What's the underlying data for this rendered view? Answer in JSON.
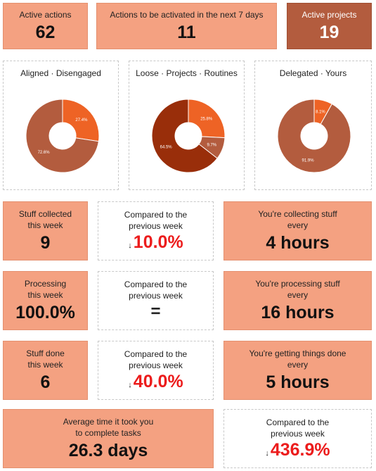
{
  "top": {
    "active_actions": {
      "label": "Active actions",
      "value": "62"
    },
    "next7": {
      "label": "Actions to be activated in the next 7 days",
      "value": "11"
    },
    "active_projects": {
      "label": "Active projects",
      "value": "19"
    }
  },
  "charts": {
    "titles": [
      "Aligned · Disengaged",
      "Loose · Projects · Routines",
      "Delegated · Yours"
    ],
    "labels": {
      "c1": [
        "27.4%",
        "72.6%"
      ],
      "c2": [
        "25.8%",
        "9.7%",
        "64.5%"
      ],
      "c3": [
        "8.1%",
        "91.9%"
      ]
    },
    "colors": {
      "orange": "#ee6325",
      "brown": "#b35c3e",
      "dark": "#992e0a"
    }
  },
  "chart_data": [
    {
      "type": "pie",
      "title": "Aligned · Disengaged",
      "categories": [
        "Aligned",
        "Disengaged"
      ],
      "values": [
        27.4,
        72.6
      ]
    },
    {
      "type": "pie",
      "title": "Loose · Projects · Routines",
      "categories": [
        "Loose",
        "Projects",
        "Routines"
      ],
      "values": [
        25.8,
        9.7,
        64.5
      ]
    },
    {
      "type": "pie",
      "title": "Delegated · Yours",
      "categories": [
        "Delegated",
        "Yours"
      ],
      "values": [
        8.1,
        91.9
      ]
    }
  ],
  "rows": {
    "collected": {
      "label1": "Stuff collected",
      "label2": "this week",
      "value": "9",
      "cmp_label1": "Compared to the",
      "cmp_label2": "previous week",
      "cmp_value": "10.0%",
      "cmp_arrow": "↓",
      "rate_label1": "You're collecting stuff",
      "rate_label2": "every",
      "rate_value": "4 hours"
    },
    "processing": {
      "label1": "Processing",
      "label2": "this week",
      "value": "100.0%",
      "cmp_label1": "Compared to the",
      "cmp_label2": "previous week",
      "cmp_value": "=",
      "rate_label1": "You're processing stuff",
      "rate_label2": "every",
      "rate_value": "16 hours"
    },
    "done": {
      "label1": "Stuff done",
      "label2": "this week",
      "value": "6",
      "cmp_label1": "Compared to the",
      "cmp_label2": "previous week",
      "cmp_value": "40.0%",
      "cmp_arrow": "↓",
      "rate_label1": "You're getting things done",
      "rate_label2": "every",
      "rate_value": "5 hours"
    }
  },
  "average": {
    "label1": "Average time it took you",
    "label2": "to complete tasks",
    "value": "26.3 days",
    "cmp_label1": "Compared to the",
    "cmp_label2": "previous week",
    "cmp_value": "436.9%",
    "cmp_arrow": "↓"
  }
}
